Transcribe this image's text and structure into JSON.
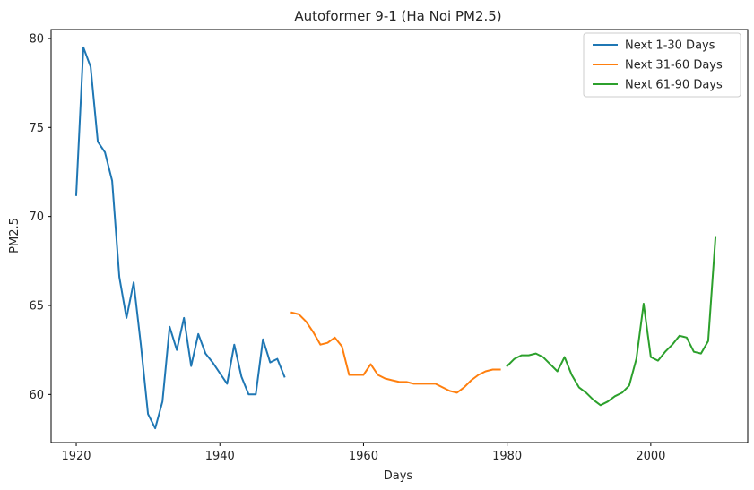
{
  "chart_data": {
    "type": "line",
    "title": "Autoformer 9-1 (Ha Noi PM2.5)",
    "xlabel": "Days",
    "ylabel": "PM2.5",
    "xlim": [
      1916.5,
      2013.5
    ],
    "ylim": [
      57.3,
      80.5
    ],
    "xticks": [
      1920,
      1940,
      1960,
      1980,
      2000
    ],
    "yticks": [
      60,
      65,
      70,
      75,
      80
    ],
    "grid": false,
    "legend_position": "top-right",
    "series": [
      {
        "name": "Next 1-30 Days",
        "color": "#1f77b4",
        "x": [
          1920,
          1921,
          1922,
          1923,
          1924,
          1925,
          1926,
          1927,
          1928,
          1929,
          1930,
          1931,
          1932,
          1933,
          1934,
          1935,
          1936,
          1937,
          1938,
          1939,
          1940,
          1941,
          1942,
          1943,
          1944,
          1945,
          1946,
          1947,
          1948,
          1949
        ],
        "y": [
          71.2,
          79.5,
          78.4,
          74.2,
          73.6,
          72.0,
          66.6,
          64.3,
          66.3,
          62.8,
          58.9,
          58.1,
          59.6,
          63.8,
          62.5,
          64.3,
          61.6,
          63.4,
          62.3,
          61.8,
          61.2,
          60.6,
          62.8,
          61.0,
          60.0,
          60.0,
          63.1,
          61.8,
          62.0,
          61.0
        ]
      },
      {
        "name": "Next 31-60 Days",
        "color": "#ff7f0e",
        "x": [
          1950,
          1951,
          1952,
          1953,
          1954,
          1955,
          1956,
          1957,
          1958,
          1959,
          1960,
          1961,
          1962,
          1963,
          1964,
          1965,
          1966,
          1967,
          1968,
          1969,
          1970,
          1971,
          1972,
          1973,
          1974,
          1975,
          1976,
          1977,
          1978,
          1979
        ],
        "y": [
          64.6,
          64.5,
          64.1,
          63.5,
          62.8,
          62.9,
          63.2,
          62.7,
          61.1,
          61.1,
          61.1,
          61.7,
          61.1,
          60.9,
          60.8,
          60.7,
          60.7,
          60.6,
          60.6,
          60.6,
          60.6,
          60.4,
          60.2,
          60.1,
          60.4,
          60.8,
          61.1,
          61.3,
          61.4,
          61.4
        ]
      },
      {
        "name": "Next 61-90 Days",
        "color": "#2ca02c",
        "x": [
          1980,
          1981,
          1982,
          1983,
          1984,
          1985,
          1986,
          1987,
          1988,
          1989,
          1990,
          1991,
          1992,
          1993,
          1994,
          1995,
          1996,
          1997,
          1998,
          1999,
          2000,
          2001,
          2002,
          2003,
          2004,
          2005,
          2006,
          2007,
          2008,
          2009
        ],
        "y": [
          61.6,
          62.0,
          62.2,
          62.2,
          62.3,
          62.1,
          61.7,
          61.3,
          62.1,
          61.1,
          60.4,
          60.1,
          59.7,
          59.4,
          59.6,
          59.9,
          60.1,
          60.5,
          62.0,
          65.1,
          62.1,
          61.9,
          62.4,
          62.8,
          63.3,
          63.2,
          62.4,
          62.3,
          63.0,
          68.8
        ]
      }
    ]
  }
}
